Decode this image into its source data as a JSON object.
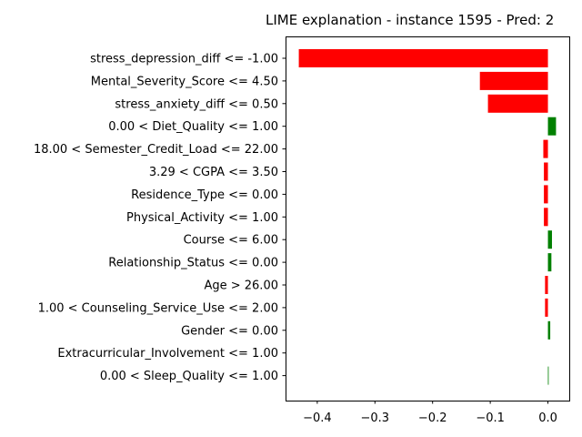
{
  "chart_data": {
    "type": "bar",
    "orientation": "horizontal",
    "title": "LIME explanation - instance 1595 - Pred: 2",
    "xlabel": "",
    "ylabel": "",
    "xlim": [
      -0.455,
      0.037
    ],
    "xticks": [
      -0.4,
      -0.3,
      -0.2,
      -0.1,
      0.0
    ],
    "xtick_labels": [
      "−0.4",
      "−0.3",
      "−0.2",
      "−0.1",
      "0.0"
    ],
    "grid": false,
    "colors": {
      "positive": "#008000",
      "negative": "#ff0000"
    },
    "categories": [
      "stress_depression_diff <= -1.00",
      "Mental_Severity_Score <= 4.50",
      "stress_anxiety_diff <= 0.50",
      "0.00 < Diet_Quality <= 1.00",
      "18.00 < Semester_Credit_Load <= 22.00",
      "3.29 < CGPA <= 3.50",
      "Residence_Type <= 0.00",
      "Physical_Activity <= 1.00",
      "Course <= 6.00",
      "Relationship_Status <= 0.00",
      "Age > 26.00",
      "1.00 < Counseling_Service_Use <= 2.00",
      "Gender <= 0.00",
      "Extracurricular_Involvement <= 1.00",
      "0.00 < Sleep_Quality <= 1.00"
    ],
    "values": [
      -0.432,
      -0.118,
      -0.104,
      0.014,
      -0.008,
      -0.007,
      -0.007,
      -0.007,
      0.007,
      0.006,
      -0.005,
      -0.005,
      0.004,
      0.0,
      0.001
    ]
  }
}
